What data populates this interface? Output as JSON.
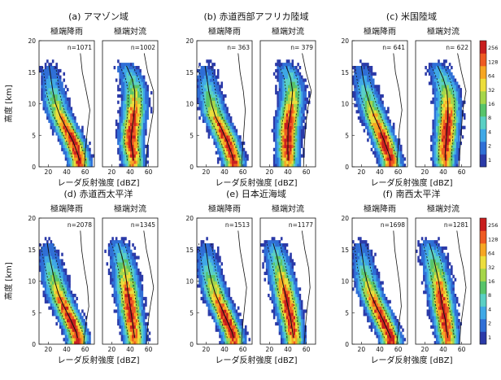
{
  "figure": {
    "y_label": "高度 [km]",
    "x_label": "レーダ反射強度 [dBZ]",
    "subplot_left": "極端降雨",
    "subplot_right": "極端対流"
  },
  "chart_data": [
    {
      "type": "heatmap",
      "id": "a",
      "title": "(a) アマゾン域",
      "n_left": "n=1071",
      "n_right": "n=1002",
      "left_core": [
        [
          1,
          54
        ],
        [
          2,
          52
        ],
        [
          4,
          47
        ],
        [
          6,
          40
        ],
        [
          8,
          33
        ],
        [
          10,
          28
        ],
        [
          12,
          25
        ],
        [
          14,
          23
        ],
        [
          16,
          21
        ]
      ],
      "right_core": [
        [
          1,
          44
        ],
        [
          2,
          43
        ],
        [
          4,
          41
        ],
        [
          6,
          42
        ],
        [
          8,
          44
        ],
        [
          10,
          45
        ],
        [
          12,
          45
        ],
        [
          14,
          42
        ],
        [
          16,
          36
        ]
      ],
      "left_profile": [
        [
          0,
          0.35
        ],
        [
          3,
          0.45
        ],
        [
          6,
          0.6
        ],
        [
          9,
          0.78
        ],
        [
          12,
          0.5
        ],
        [
          15,
          0.2
        ],
        [
          18,
          0.05
        ]
      ],
      "right_profile": [
        [
          0,
          0.2
        ],
        [
          3,
          0.3
        ],
        [
          6,
          0.55
        ],
        [
          9,
          0.8
        ],
        [
          12,
          0.8
        ],
        [
          15,
          0.35
        ],
        [
          18,
          0.08
        ]
      ]
    },
    {
      "type": "heatmap",
      "id": "b",
      "title": "(b) 赤道西部アフリカ陸域",
      "n_left": "n= 363",
      "n_right": "n= 379",
      "left_core": [
        [
          1,
          50
        ],
        [
          2,
          48
        ],
        [
          4,
          43
        ],
        [
          6,
          37
        ],
        [
          8,
          30
        ],
        [
          10,
          26
        ],
        [
          12,
          23
        ],
        [
          14,
          21
        ],
        [
          16,
          19
        ]
      ],
      "right_core": [
        [
          1,
          40
        ],
        [
          2,
          40
        ],
        [
          4,
          40
        ],
        [
          6,
          40
        ],
        [
          8,
          42
        ],
        [
          10,
          44
        ],
        [
          12,
          45
        ],
        [
          14,
          43
        ],
        [
          16,
          38
        ]
      ],
      "left_profile": [
        [
          0,
          0.3
        ],
        [
          3,
          0.4
        ],
        [
          6,
          0.5
        ],
        [
          9,
          0.6
        ],
        [
          12,
          0.45
        ],
        [
          15,
          0.2
        ],
        [
          18,
          0.05
        ]
      ],
      "right_profile": [
        [
          0,
          0.2
        ],
        [
          3,
          0.25
        ],
        [
          6,
          0.35
        ],
        [
          9,
          0.5
        ],
        [
          12,
          0.8
        ],
        [
          15,
          0.4
        ],
        [
          18,
          0.1
        ]
      ]
    },
    {
      "type": "heatmap",
      "id": "c",
      "title": "(c) 米国陸域",
      "n_left": "n= 641",
      "n_right": "n= 622",
      "left_core": [
        [
          1,
          52
        ],
        [
          2,
          50
        ],
        [
          4,
          45
        ],
        [
          6,
          40
        ],
        [
          8,
          34
        ],
        [
          10,
          29
        ],
        [
          12,
          25
        ],
        [
          14,
          22
        ],
        [
          16,
          20
        ]
      ],
      "right_core": [
        [
          1,
          42
        ],
        [
          2,
          42
        ],
        [
          4,
          43
        ],
        [
          6,
          44
        ],
        [
          8,
          45
        ],
        [
          10,
          45
        ],
        [
          12,
          44
        ],
        [
          14,
          40
        ],
        [
          16,
          34
        ]
      ],
      "left_profile": [
        [
          0,
          0.3
        ],
        [
          3,
          0.4
        ],
        [
          6,
          0.5
        ],
        [
          9,
          0.7
        ],
        [
          12,
          0.5
        ],
        [
          15,
          0.2
        ],
        [
          18,
          0.05
        ]
      ],
      "right_profile": [
        [
          0,
          0.2
        ],
        [
          3,
          0.3
        ],
        [
          6,
          0.4
        ],
        [
          9,
          0.5
        ],
        [
          12,
          0.75
        ],
        [
          15,
          0.4
        ],
        [
          18,
          0.1
        ]
      ]
    },
    {
      "type": "heatmap",
      "id": "d",
      "title": "(d) 赤道西太平洋",
      "n_left": "n=2078",
      "n_right": "n=1345",
      "left_core": [
        [
          1,
          52
        ],
        [
          2,
          50
        ],
        [
          4,
          44
        ],
        [
          6,
          37
        ],
        [
          8,
          31
        ],
        [
          10,
          27
        ],
        [
          12,
          24
        ],
        [
          14,
          21
        ],
        [
          16,
          19
        ]
      ],
      "right_core": [
        [
          1,
          45
        ],
        [
          2,
          44
        ],
        [
          4,
          42
        ],
        [
          6,
          40
        ],
        [
          8,
          38
        ],
        [
          10,
          36
        ],
        [
          12,
          34
        ],
        [
          14,
          31
        ],
        [
          16,
          27
        ]
      ],
      "left_profile": [
        [
          0,
          0.3
        ],
        [
          3,
          0.45
        ],
        [
          6,
          0.7
        ],
        [
          9,
          0.6
        ],
        [
          12,
          0.35
        ],
        [
          15,
          0.15
        ],
        [
          18,
          0.05
        ]
      ],
      "right_profile": [
        [
          0,
          0.25
        ],
        [
          3,
          0.35
        ],
        [
          6,
          0.55
        ],
        [
          9,
          0.8
        ],
        [
          12,
          0.55
        ],
        [
          15,
          0.25
        ],
        [
          18,
          0.05
        ]
      ]
    },
    {
      "type": "heatmap",
      "id": "e",
      "title": "(e) 日本近海域",
      "n_left": "n=1513",
      "n_right": "n=1177",
      "left_core": [
        [
          1,
          50
        ],
        [
          2,
          48
        ],
        [
          4,
          42
        ],
        [
          6,
          36
        ],
        [
          8,
          30
        ],
        [
          10,
          26
        ],
        [
          12,
          23
        ],
        [
          14,
          21
        ],
        [
          16,
          19
        ]
      ],
      "right_core": [
        [
          1,
          46
        ],
        [
          2,
          45
        ],
        [
          4,
          43
        ],
        [
          6,
          40
        ],
        [
          8,
          37
        ],
        [
          10,
          34
        ],
        [
          12,
          31
        ],
        [
          14,
          28
        ],
        [
          16,
          24
        ]
      ],
      "left_profile": [
        [
          0,
          0.3
        ],
        [
          3,
          0.4
        ],
        [
          6,
          0.55
        ],
        [
          9,
          0.7
        ],
        [
          12,
          0.45
        ],
        [
          15,
          0.2
        ],
        [
          18,
          0.05
        ]
      ],
      "right_profile": [
        [
          0,
          0.25
        ],
        [
          3,
          0.35
        ],
        [
          6,
          0.5
        ],
        [
          9,
          0.7
        ],
        [
          12,
          0.6
        ],
        [
          15,
          0.3
        ],
        [
          18,
          0.08
        ]
      ]
    },
    {
      "type": "heatmap",
      "id": "f",
      "title": "(f) 南西太平洋",
      "n_left": "n=1698",
      "n_right": "n=1281",
      "left_core": [
        [
          1,
          52
        ],
        [
          2,
          49
        ],
        [
          4,
          43
        ],
        [
          6,
          36
        ],
        [
          8,
          30
        ],
        [
          10,
          26
        ],
        [
          12,
          23
        ],
        [
          14,
          21
        ],
        [
          16,
          19
        ]
      ],
      "right_core": [
        [
          1,
          45
        ],
        [
          2,
          44
        ],
        [
          4,
          42
        ],
        [
          6,
          39
        ],
        [
          8,
          37
        ],
        [
          10,
          35
        ],
        [
          12,
          32
        ],
        [
          14,
          29
        ],
        [
          16,
          25
        ]
      ],
      "left_profile": [
        [
          0,
          0.3
        ],
        [
          3,
          0.45
        ],
        [
          6,
          0.65
        ],
        [
          9,
          0.55
        ],
        [
          12,
          0.35
        ],
        [
          15,
          0.15
        ],
        [
          18,
          0.05
        ]
      ],
      "right_profile": [
        [
          0,
          0.25
        ],
        [
          3,
          0.35
        ],
        [
          6,
          0.55
        ],
        [
          9,
          0.75
        ],
        [
          12,
          0.55
        ],
        [
          15,
          0.25
        ],
        [
          18,
          0.05
        ]
      ]
    }
  ],
  "axes": {
    "xlim": [
      10,
      70
    ],
    "ylim": [
      0,
      20
    ],
    "xticks": [
      20,
      40,
      60
    ],
    "yticks": [
      0,
      5,
      10,
      15,
      20
    ]
  },
  "colorbar": {
    "ticks": [
      "1",
      "2",
      "4",
      "8",
      "16",
      "32",
      "64",
      "128",
      "256"
    ],
    "colors": [
      "#2b3aa8",
      "#2f6fd6",
      "#3fa8e6",
      "#5ad0c4",
      "#58c46a",
      "#a6d64a",
      "#ecde3c",
      "#f6a623",
      "#ee5a22",
      "#c81e1e"
    ]
  }
}
